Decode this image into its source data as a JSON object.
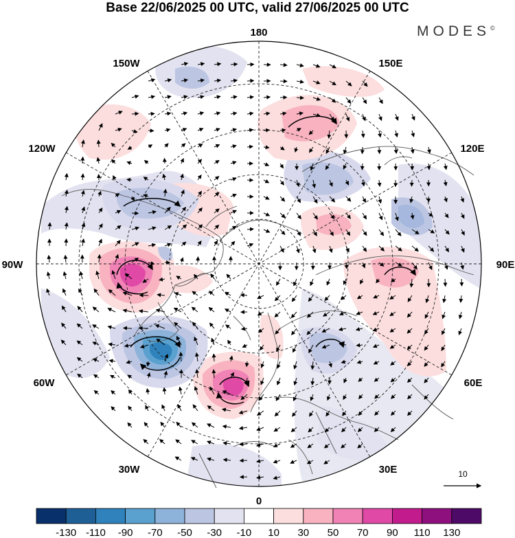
{
  "title": "Base 22/06/2025 00 UTC, valid 27/06/2025 00 UTC",
  "brand": {
    "name": "MODES",
    "mark": "©"
  },
  "longitude_labels": {
    "lon_180": "180",
    "lon_150E": "150E",
    "lon_120E": "120E",
    "lon_90E": "90E",
    "lon_60E": "60E",
    "lon_30E": "30E",
    "lon_0": "0",
    "lon_30W": "30W",
    "lon_60W": "60W",
    "lon_90W": "90W",
    "lon_120W": "120W",
    "lon_150W": "150W"
  },
  "reference_vector": {
    "label": "10"
  },
  "colorbar": {
    "colors": [
      "#08306b",
      "#1e5f95",
      "#2f82bb",
      "#5aa1cf",
      "#8eb3da",
      "#bcc6e3",
      "#e3e2f0",
      "#ffffff",
      "#fcdede",
      "#f8b2c0",
      "#f082b5",
      "#e04aa6",
      "#c21b8d",
      "#8e0f7e",
      "#4d0a66"
    ],
    "tick_labels": [
      "-130",
      "-110",
      "-90",
      "-70",
      "-50",
      "-30",
      "-10",
      "10",
      "30",
      "50",
      "70",
      "90",
      "110",
      "130"
    ]
  },
  "anomaly_centers": [
    {
      "name": "low-north-atlantic",
      "sign": "negative",
      "value": -90
    },
    {
      "name": "high-canada",
      "sign": "positive",
      "value": 90
    },
    {
      "name": "high-west-europe",
      "sign": "positive",
      "value": 90
    },
    {
      "name": "low-scandinavia",
      "sign": "negative",
      "value": -50
    },
    {
      "name": "high-west-siberia",
      "sign": "positive",
      "value": 50
    },
    {
      "name": "low-east-siberia",
      "sign": "negative",
      "value": -50
    },
    {
      "name": "high-north-pacific",
      "sign": "positive",
      "value": 50
    },
    {
      "name": "low-alaska",
      "sign": "negative",
      "value": -50
    }
  ]
}
